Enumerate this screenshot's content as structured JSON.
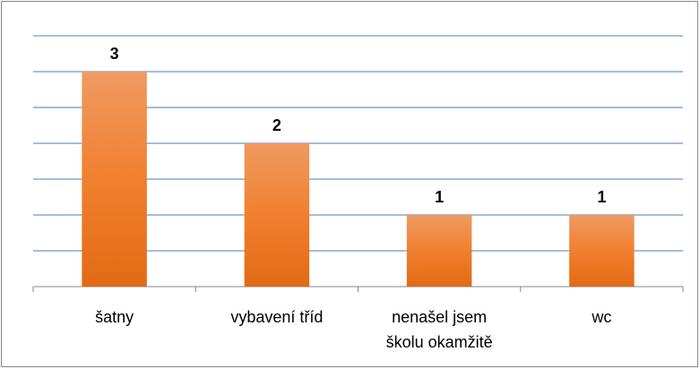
{
  "chart_data": {
    "type": "bar",
    "categories": [
      "šatny",
      "vybavení tříd",
      "nenašel jsem školu okamžitě",
      "wc"
    ],
    "values": [
      3,
      2,
      1,
      1
    ],
    "color": "#ee7a2c",
    "ylim": [
      0,
      3.5
    ],
    "yticks": [
      0,
      0.5,
      1,
      1.5,
      2,
      2.5,
      3,
      3.5
    ],
    "grid": true
  }
}
